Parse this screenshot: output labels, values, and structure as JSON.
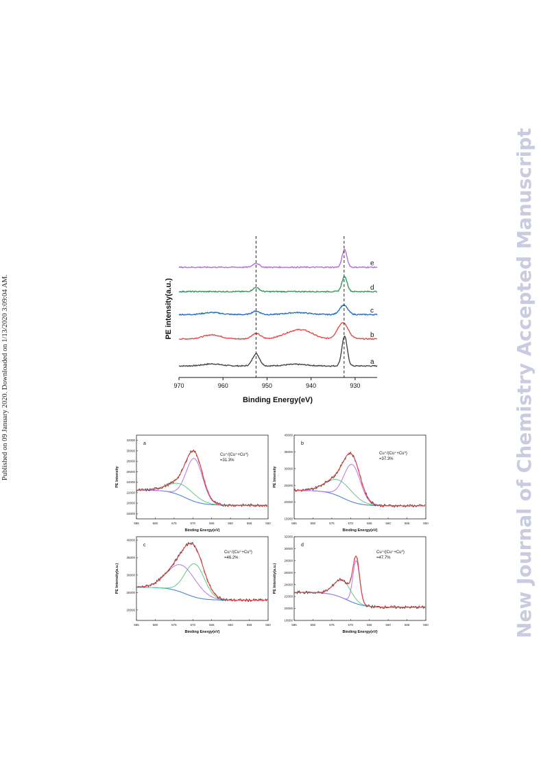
{
  "side_note": "Published on 09 January 2020. Downloaded on 1/13/2020 3:09:04 AM.",
  "watermark": "New Journal of Chemistry Accepted Manuscript",
  "colors": {
    "gray": "#444444",
    "red": "#e24b4b",
    "blue": "#1f6fc9",
    "green": "#2e9a5a",
    "purple": "#b06fe0",
    "fit_green": "#5ec985",
    "fit_purple": "#b276e8",
    "fit_blue": "#4a82d8",
    "fit_red": "#e64a4a",
    "raw": "#333333"
  },
  "chart_data": [
    {
      "type": "line",
      "id": "survey",
      "xlabel": "Binding Energy(eV)",
      "ylabel": "PE intensity(a.u.)",
      "xlim": [
        970,
        925
      ],
      "xticks": [
        970,
        960,
        950,
        940,
        930
      ],
      "reference_lines_x": [
        952.5,
        932.5
      ],
      "series": [
        {
          "name": "a",
          "color": "gray",
          "baseline": 0.06,
          "peaks": [
            [
              952.5,
              0.09,
              0.8
            ],
            [
              932.4,
              0.22,
              0.6
            ],
            [
              962.5,
              0.015,
              2.0
            ],
            [
              943.5,
              0.012,
              2.5
            ]
          ]
        },
        {
          "name": "b",
          "color": "red",
          "baseline": 0.26,
          "peaks": [
            [
              952.5,
              0.04,
              1.0
            ],
            [
              932.8,
              0.12,
              1.2
            ],
            [
              962.5,
              0.03,
              2.0
            ],
            [
              944.0,
              0.05,
              2.5
            ],
            [
              941.0,
              0.035,
              2.0
            ]
          ]
        },
        {
          "name": "c",
          "color": "blue",
          "baseline": 0.44,
          "peaks": [
            [
              952.5,
              0.025,
              0.9
            ],
            [
              932.6,
              0.07,
              0.9
            ],
            [
              962.5,
              0.015,
              2.0
            ],
            [
              943.0,
              0.015,
              2.5
            ]
          ]
        },
        {
          "name": "d",
          "color": "green",
          "baseline": 0.61,
          "peaks": [
            [
              952.5,
              0.03,
              0.7
            ],
            [
              932.4,
              0.11,
              0.6
            ]
          ]
        },
        {
          "name": "e",
          "color": "purple",
          "baseline": 0.79,
          "peaks": [
            [
              952.5,
              0.03,
              0.7
            ],
            [
              932.4,
              0.13,
              0.55
            ]
          ]
        }
      ]
    },
    {
      "type": "line",
      "id": "a",
      "label": "a",
      "xlabel": "Binding Energy(eV)",
      "ylabel": "PE Intensity",
      "annotation_lines": [
        "Cu⁺/(Cu⁺+Cu⁰)",
        "=31.3%"
      ],
      "xlim": [
        585,
        550
      ],
      "xticks": [
        585,
        580,
        575,
        570,
        565,
        560,
        555,
        550
      ],
      "ylim": [
        17000,
        33000
      ],
      "yticks": [
        18000,
        20000,
        22000,
        24000,
        26000,
        28000,
        30000,
        32000
      ],
      "background": [
        22500,
        19600
      ],
      "bg_knee": 572,
      "components": [
        {
          "color": "fit_green",
          "center": 573.0,
          "height": 2200,
          "width": 3.5
        },
        {
          "color": "fit_purple",
          "center": 569.6,
          "height": 8200,
          "width": 2.2
        }
      ]
    },
    {
      "type": "line",
      "id": "b",
      "label": "b",
      "xlabel": "Binding Energy(eV)",
      "ylabel": "PE Intensity",
      "annotation_lines": [
        "Cu⁺/(Cu⁺+Cu⁰)",
        "=37.3%"
      ],
      "xlim": [
        585,
        550
      ],
      "xticks": [
        585,
        580,
        575,
        570,
        565,
        560,
        555,
        550
      ],
      "ylim": [
        15000,
        40000
      ],
      "yticks": [
        15000,
        20000,
        25000,
        30000,
        35000,
        40000
      ],
      "background": [
        23500,
        18900
      ],
      "bg_knee": 572,
      "components": [
        {
          "color": "fit_green",
          "center": 573.0,
          "height": 4800,
          "width": 3.5
        },
        {
          "color": "fit_purple",
          "center": 569.6,
          "height": 11200,
          "width": 2.2
        }
      ]
    },
    {
      "type": "line",
      "id": "c",
      "label": "c",
      "xlabel": "Binding Energy(eV)",
      "ylabel": "PE Intensity(a.u.)",
      "annotation_lines": [
        "Cu⁺/(Cu⁺+Cu⁰)",
        "=46.2%"
      ],
      "xlim": [
        585,
        550
      ],
      "xticks": [
        585,
        580,
        575,
        570,
        565,
        560,
        555,
        550
      ],
      "ylim": [
        17000,
        41000
      ],
      "yticks": [
        20000,
        25000,
        30000,
        35000,
        40000
      ],
      "background": [
        26500,
        22800
      ],
      "bg_knee": 572,
      "components": [
        {
          "color": "fit_purple",
          "center": 573.0,
          "height": 7800,
          "width": 3.8
        },
        {
          "color": "fit_green",
          "center": 569.5,
          "height": 9500,
          "width": 2.6
        }
      ]
    },
    {
      "type": "line",
      "id": "d",
      "label": "d",
      "xlabel": "Binding Energy(eV)",
      "ylabel": "PE Intensity(a.u.)",
      "annotation_lines": [
        "Cu⁺/(Cu⁺+Cu⁰)",
        "=47.7%"
      ],
      "xlim": [
        585,
        550
      ],
      "xticks": [
        585,
        580,
        575,
        570,
        565,
        560,
        555,
        550
      ],
      "ylim": [
        18000,
        32000
      ],
      "yticks": [
        18000,
        20000,
        22000,
        24000,
        26000,
        28000,
        30000,
        32000
      ],
      "background": [
        22700,
        20200
      ],
      "bg_knee": 571,
      "components": [
        {
          "color": "fit_green",
          "center": 572.2,
          "height": 3000,
          "width": 2.2
        },
        {
          "color": "fit_purple",
          "center": 568.5,
          "height": 7200,
          "width": 0.9
        }
      ]
    }
  ]
}
